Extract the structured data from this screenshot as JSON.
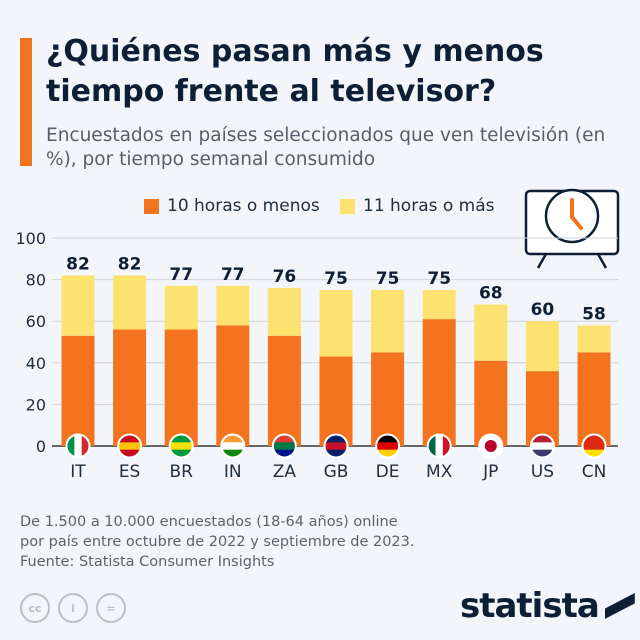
{
  "header": {
    "title": "¿Quiénes pasan más y menos tiempo frente al televisor?",
    "subtitle": "Encuestados en países seleccionados que ven televisión (en %), por tiempo semanal consumido"
  },
  "chart_data": {
    "type": "bar",
    "stacked": true,
    "categories": [
      "IT",
      "ES",
      "BR",
      "IN",
      "ZA",
      "GB",
      "DE",
      "MX",
      "JP",
      "US",
      "CN"
    ],
    "series": [
      {
        "name": "10 horas o menos",
        "color": "#f4731f",
        "values": [
          53,
          56,
          56,
          58,
          53,
          43,
          45,
          61,
          41,
          36,
          45
        ]
      },
      {
        "name": "11 horas o más",
        "color": "#fde26f",
        "values": [
          29,
          26,
          21,
          19,
          23,
          32,
          30,
          14,
          27,
          24,
          13
        ]
      }
    ],
    "totals": [
      82,
      82,
      77,
      77,
      76,
      75,
      75,
      75,
      68,
      60,
      58
    ],
    "ylim": [
      0,
      100
    ],
    "yticks": [
      0,
      20,
      40,
      60,
      80,
      100
    ],
    "grid": true,
    "legend": "top",
    "flags": [
      "italy-flag",
      "spain-flag",
      "brazil-flag",
      "india-flag",
      "south-africa-flag",
      "uk-flag",
      "germany-flag",
      "mexico-flag",
      "japan-flag",
      "usa-flag",
      "china-flag"
    ]
  },
  "footer": {
    "line1": "De 1.500 a 10.000 encuestados (18-64 años) online",
    "line2": "por país entre octubre de 2022 y septiembre de 2023.",
    "source": "Fuente: Statista Consumer Insights"
  },
  "brand": {
    "logo": "statista"
  },
  "license": {
    "cc": "cc",
    "by": "i",
    "nd": "="
  }
}
